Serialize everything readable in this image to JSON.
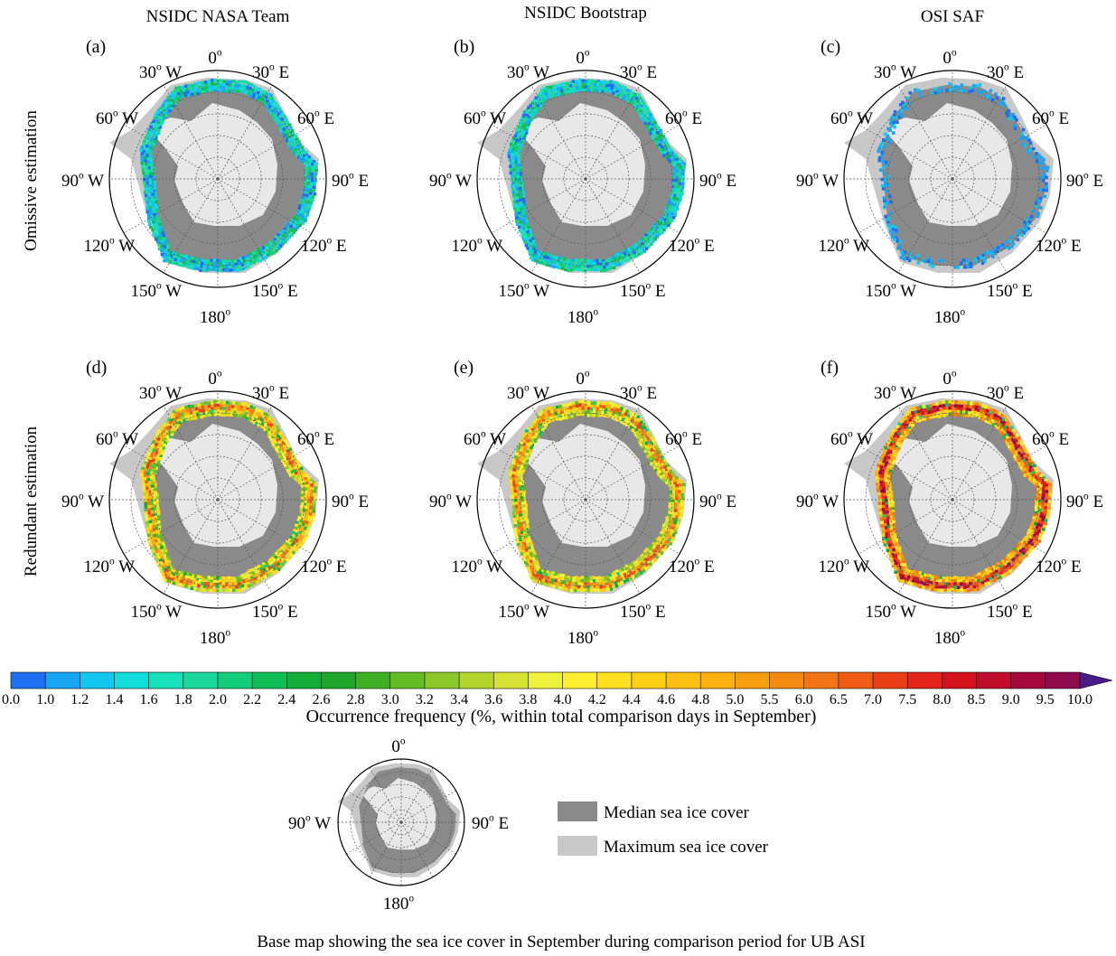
{
  "column_titles": [
    "NSIDC NASA Team",
    "NSIDC Bootstrap",
    "OSI SAF"
  ],
  "row_labels": [
    "Omissive estimation",
    "Redundant estimation"
  ],
  "panels": [
    {
      "label": "(a)",
      "product": "NSIDC NASA Team",
      "type": "omissive"
    },
    {
      "label": "(b)",
      "product": "NSIDC Bootstrap",
      "type": "omissive"
    },
    {
      "label": "(c)",
      "product": "OSI SAF",
      "type": "omissive"
    },
    {
      "label": "(d)",
      "product": "NSIDC NASA Team",
      "type": "redundant"
    },
    {
      "label": "(e)",
      "product": "NSIDC Bootstrap",
      "type": "redundant"
    },
    {
      "label": "(f)",
      "product": "OSI SAF",
      "type": "redundant"
    }
  ],
  "map_labels": {
    "top": "0",
    "left_upper": [
      "30",
      " W"
    ],
    "right_upper": [
      "30",
      " E"
    ],
    "left_mid": [
      "60",
      " W"
    ],
    "right_mid": [
      "60",
      " E"
    ],
    "left_center": [
      "90",
      " W"
    ],
    "right_center": [
      "90",
      " E"
    ],
    "left_lower": [
      "120",
      " W"
    ],
    "right_lower": [
      "120",
      " E"
    ],
    "left_bottom": [
      "150",
      " W"
    ],
    "right_bottom": [
      "150",
      " E"
    ],
    "bottom": "180",
    "degree_mark": "o"
  },
  "colorbar": {
    "ticks": [
      "0.0",
      "1.0",
      "1.2",
      "1.4",
      "1.6",
      "1.8",
      "2.0",
      "2.2",
      "2.4",
      "2.6",
      "2.8",
      "3.0",
      "3.2",
      "3.4",
      "3.6",
      "3.8",
      "4.0",
      "4.2",
      "4.4",
      "4.6",
      "4.8",
      "5.0",
      "5.5",
      "6.0",
      "6.5",
      "7.0",
      "7.5",
      "8.0",
      "8.5",
      "9.0",
      "9.5",
      "10.0"
    ],
    "colors": [
      "#1f6ff0",
      "#18a6f2",
      "#12c6ee",
      "#12dcd9",
      "#16e0b8",
      "#1ad79a",
      "#14cd7a",
      "#10be55",
      "#14ad38",
      "#1fa52a",
      "#3fb026",
      "#64bd24",
      "#8cc829",
      "#b4d52e",
      "#d6e334",
      "#eef23a",
      "#ffef30",
      "#ffe020",
      "#fdd016",
      "#fbc012",
      "#f9b010",
      "#f69e10",
      "#f48a12",
      "#f27414",
      "#ef5c16",
      "#ea3f16",
      "#e4231a",
      "#d4121e",
      "#c00c2c",
      "#a4083c",
      "#8e0a4c"
    ],
    "arrow_color": "#4a1a86",
    "label": "Occurrence frequency (%, within total comparison days in September)"
  },
  "base_map": {
    "labels": {
      "top": "0",
      "left": [
        "90",
        " W"
      ],
      "right": [
        "90",
        " E"
      ],
      "bottom": "180"
    },
    "legend": [
      {
        "label": "Median sea ice cover",
        "color": "#8a8a8a"
      },
      {
        "label": "Maximum sea ice cover",
        "color": "#c8c8c8"
      }
    ],
    "caption": "Base map showing the sea ice cover in September during comparison period for UB ASI"
  },
  "colors": {
    "antarctica": "#e8e8e8",
    "median_ice": "#8a8a8a",
    "max_ice": "#c8c8c8",
    "grid": "#555555"
  }
}
